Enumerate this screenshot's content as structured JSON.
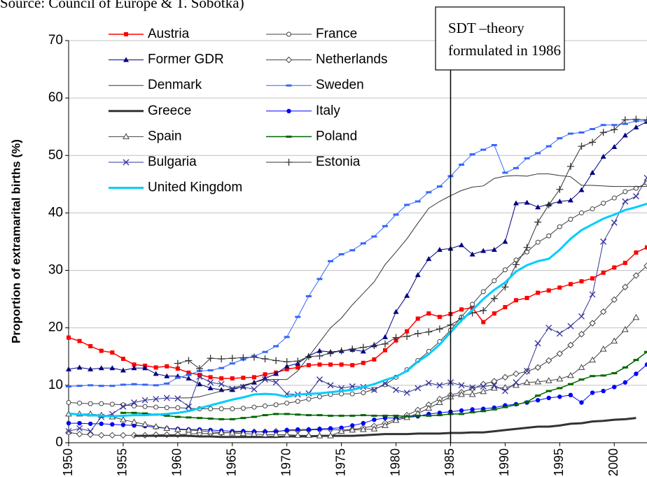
{
  "chart_data": {
    "type": "line",
    "subtitle": "Source: Council of Europe & T. Sobotka)",
    "y_label": "Proportion of extramarital births (%)",
    "annotation": [
      "SDT –theory",
      "formulated in 1986"
    ],
    "annotation_x": 1985,
    "x": [
      1950,
      1951,
      1952,
      1953,
      1954,
      1955,
      1956,
      1957,
      1958,
      1959,
      1960,
      1961,
      1962,
      1963,
      1964,
      1965,
      1966,
      1967,
      1968,
      1969,
      1970,
      1971,
      1972,
      1973,
      1974,
      1975,
      1976,
      1977,
      1978,
      1979,
      1980,
      1981,
      1982,
      1983,
      1984,
      1985,
      1986,
      1987,
      1988,
      1989,
      1990,
      1991,
      1992,
      1993,
      1994,
      1995,
      1996,
      1997,
      1998,
      1999,
      2000,
      2001,
      2002,
      2003
    ],
    "xlim": [
      1950,
      2003
    ],
    "xticks": [
      1950,
      1955,
      1960,
      1965,
      1970,
      1975,
      1980,
      1985,
      1990,
      1995,
      2000
    ],
    "ylim": [
      0,
      70
    ],
    "yticks": [
      0,
      10,
      20,
      30,
      40,
      50,
      60,
      70
    ],
    "grid": true,
    "series": [
      {
        "name": "Austria",
        "color": "#ff0000",
        "marker": "square",
        "width": 1.5,
        "values": [
          18.3,
          17.7,
          16.8,
          16.0,
          15.7,
          14.6,
          13.6,
          13.4,
          13.1,
          13.3,
          12.9,
          12.2,
          11.8,
          11.4,
          11.2,
          11.2,
          11.3,
          11.4,
          11.9,
          12.2,
          12.8,
          13.1,
          13.5,
          13.6,
          13.6,
          13.6,
          13.5,
          13.9,
          14.5,
          16.1,
          17.8,
          19.4,
          21.6,
          22.5,
          21.9,
          22.4,
          23.2,
          23.5,
          21.0,
          22.5,
          23.6,
          24.8,
          25.2,
          26.1,
          26.5,
          27.0,
          27.6,
          28.1,
          28.6,
          29.6,
          30.5,
          31.3,
          33.1,
          34.0
        ]
      },
      {
        "name": "France",
        "color": "#404040",
        "marker": "circle-open",
        "width": 1,
        "values": [
          7.0,
          6.9,
          6.8,
          6.8,
          6.7,
          6.6,
          6.4,
          6.3,
          6.2,
          6.1,
          6.1,
          6.0,
          5.9,
          5.9,
          5.9,
          5.9,
          6.0,
          6.2,
          6.4,
          6.6,
          6.9,
          7.2,
          7.6,
          8.0,
          8.4,
          8.5,
          8.5,
          8.7,
          9.3,
          10.1,
          11.4,
          12.7,
          14.3,
          15.9,
          17.6,
          19.6,
          21.9,
          24.1,
          26.3,
          28.2,
          30.1,
          31.8,
          33.2,
          34.9,
          36.0,
          37.6,
          38.9,
          40.0,
          40.7,
          41.7,
          42.6,
          43.7,
          44.3,
          45.2
        ]
      },
      {
        "name": "Former GDR",
        "color": "#000080",
        "marker": "triangle",
        "width": 1,
        "values": [
          12.8,
          13.1,
          12.8,
          13.0,
          13.0,
          12.6,
          13.0,
          13.0,
          12.0,
          11.6,
          11.6,
          11.2,
          10.2,
          9.5,
          9.2,
          9.2,
          9.8,
          10.5,
          11.2,
          12.0,
          13.3,
          13.8,
          15.1,
          16.0,
          15.8,
          16.0,
          16.2,
          15.9,
          17.0,
          18.4,
          22.8,
          25.6,
          29.2,
          32.0,
          33.6,
          33.8,
          34.4,
          32.8,
          33.4,
          33.6,
          35.0,
          41.7,
          41.8,
          41.0,
          41.5,
          42.0,
          42.2,
          44.0,
          47.0,
          49.8,
          51.5,
          53.5,
          54.9,
          55.9
        ]
      },
      {
        "name": "Netherlands",
        "color": "#404040",
        "marker": "diamond-open",
        "width": 1,
        "values": [
          1.8,
          1.5,
          1.4,
          1.3,
          1.3,
          1.3,
          1.3,
          1.3,
          1.4,
          1.4,
          1.4,
          1.5,
          1.6,
          1.6,
          1.7,
          1.8,
          1.9,
          1.9,
          1.9,
          2.0,
          2.1,
          2.1,
          2.2,
          2.3,
          2.3,
          2.2,
          2.3,
          2.6,
          2.9,
          3.4,
          4.1,
          4.8,
          5.7,
          6.6,
          7.6,
          8.3,
          8.8,
          9.4,
          10.2,
          10.7,
          11.4,
          12.0,
          12.4,
          13.1,
          14.3,
          15.5,
          17.0,
          18.9,
          20.8,
          22.8,
          24.9,
          27.1,
          29.1,
          30.8
        ]
      },
      {
        "name": "Denmark",
        "color": "#333333",
        "marker": "none",
        "width": 1,
        "values": [
          null,
          null,
          null,
          null,
          null,
          null,
          null,
          null,
          null,
          null,
          7.8,
          7.8,
          8.0,
          8.5,
          9.0,
          9.5,
          10.0,
          10.5,
          11.0,
          11.0,
          11.0,
          12.5,
          15.0,
          17.5,
          20.0,
          21.7,
          24.0,
          26.0,
          28.0,
          31.0,
          33.2,
          35.5,
          38.2,
          40.8,
          42.0,
          43.0,
          43.9,
          44.5,
          44.7,
          46.0,
          46.4,
          46.5,
          46.4,
          46.8,
          46.8,
          46.5,
          46.3,
          44.8,
          44.8,
          44.7,
          44.6,
          44.6,
          44.6,
          44.6
        ]
      },
      {
        "name": "Sweden",
        "color": "#3366ff",
        "marker": "dash",
        "width": 1,
        "values": [
          9.8,
          9.9,
          10.0,
          9.9,
          9.9,
          10.1,
          10.2,
          10.1,
          10.0,
          10.3,
          11.3,
          11.8,
          12.5,
          12.6,
          13.0,
          13.8,
          14.5,
          15.1,
          15.8,
          16.8,
          18.4,
          21.9,
          25.5,
          28.5,
          31.6,
          32.8,
          33.5,
          34.7,
          35.9,
          37.7,
          39.7,
          41.4,
          42.0,
          43.6,
          44.6,
          46.4,
          48.4,
          50.2,
          51.0,
          51.8,
          47.0,
          47.8,
          49.5,
          50.4,
          51.6,
          53.0,
          53.8,
          54.0,
          54.6,
          55.3,
          55.3,
          55.5,
          56.0,
          56.0
        ]
      },
      {
        "name": "Greece",
        "color": "#333333",
        "marker": "none",
        "width": 3,
        "values": [
          null,
          null,
          null,
          null,
          null,
          null,
          1.2,
          1.2,
          1.2,
          1.2,
          1.2,
          1.2,
          1.1,
          1.1,
          1.0,
          1.0,
          1.0,
          1.0,
          1.0,
          1.0,
          1.1,
          1.1,
          1.1,
          1.2,
          1.2,
          1.2,
          1.2,
          1.3,
          1.4,
          1.5,
          1.5,
          1.5,
          1.6,
          1.6,
          1.6,
          1.7,
          1.7,
          1.8,
          1.8,
          2.0,
          2.2,
          2.4,
          2.6,
          2.8,
          2.8,
          3.0,
          3.3,
          3.4,
          3.7,
          3.8,
          4.0,
          4.1,
          4.3,
          null
        ]
      },
      {
        "name": "Italy",
        "color": "#0000ff",
        "marker": "circle",
        "width": 1,
        "values": [
          3.4,
          3.4,
          3.3,
          3.3,
          3.2,
          3.1,
          3.0,
          2.9,
          2.7,
          2.5,
          2.4,
          2.3,
          2.3,
          2.2,
          2.1,
          2.0,
          2.0,
          1.9,
          1.9,
          1.9,
          2.2,
          2.3,
          2.3,
          2.4,
          2.5,
          2.6,
          3.0,
          3.4,
          4.0,
          4.3,
          4.3,
          4.4,
          4.6,
          5.0,
          5.2,
          5.4,
          5.6,
          5.8,
          5.9,
          6.1,
          6.5,
          6.7,
          7.0,
          7.4,
          7.8,
          8.0,
          8.3,
          7.0,
          8.7,
          9.0,
          9.7,
          10.5,
          12.0,
          13.6
        ]
      },
      {
        "name": "Spain",
        "color": "#404040",
        "marker": "triangle-open",
        "width": 1,
        "values": [
          5.0,
          5.0,
          5.0,
          4.8,
          4.5,
          4.0,
          3.6,
          3.2,
          2.8,
          2.5,
          2.3,
          2.2,
          2.1,
          1.9,
          1.8,
          1.7,
          1.6,
          1.5,
          1.4,
          1.4,
          1.4,
          1.3,
          1.3,
          1.2,
          1.2,
          2.0,
          2.2,
          2.3,
          2.4,
          3.0,
          3.9,
          4.4,
          5.1,
          6.0,
          7.0,
          8.0,
          8.4,
          8.4,
          8.9,
          9.5,
          9.6,
          10.0,
          10.5,
          10.6,
          10.8,
          11.1,
          11.7,
          13.1,
          14.4,
          16.3,
          17.7,
          19.7,
          21.8,
          null
        ]
      },
      {
        "name": "Poland",
        "color": "#006600",
        "marker": "dash",
        "width": 1.5,
        "values": [
          null,
          null,
          null,
          null,
          null,
          5.2,
          5.2,
          5.1,
          4.9,
          4.7,
          4.5,
          4.4,
          4.3,
          4.2,
          4.1,
          4.1,
          4.3,
          4.5,
          4.8,
          5.0,
          5.0,
          4.9,
          4.8,
          4.8,
          4.7,
          4.7,
          4.7,
          4.8,
          4.7,
          4.7,
          4.7,
          4.6,
          4.7,
          4.7,
          4.8,
          5.0,
          5.0,
          5.3,
          5.5,
          5.8,
          6.2,
          6.6,
          7.1,
          8.2,
          9.0,
          9.5,
          10.2,
          11.0,
          11.6,
          11.7,
          12.1,
          13.1,
          14.4,
          15.8
        ]
      },
      {
        "name": "Bulgaria",
        "color": "#333399",
        "marker": "x",
        "width": 1,
        "values": [
          2.0,
          2.5,
          2.0,
          4.5,
          5.0,
          6.3,
          7.0,
          7.4,
          7.6,
          7.8,
          7.7,
          6.3,
          11.5,
          10.5,
          10.2,
          9.4,
          9.7,
          9.3,
          11.0,
          10.5,
          8.5,
          8.4,
          8.6,
          11.0,
          10.0,
          9.5,
          9.8,
          9.7,
          9.2,
          10.3,
          9.2,
          8.7,
          9.5,
          10.4,
          10.0,
          10.5,
          10.0,
          9.6,
          9.8,
          10.0,
          9.0,
          10.5,
          12.5,
          17.3,
          20.0,
          19.0,
          20.3,
          22.0,
          25.8,
          35.0,
          38.3,
          42.0,
          42.9,
          46.1
        ]
      },
      {
        "name": "Estonia",
        "color": "#333333",
        "marker": "plus",
        "width": 1,
        "values": [
          null,
          null,
          null,
          null,
          null,
          null,
          null,
          null,
          null,
          null,
          13.8,
          14.3,
          12.9,
          14.7,
          14.6,
          14.7,
          14.8,
          14.9,
          14.6,
          14.3,
          14.1,
          14.2,
          15.0,
          15.1,
          15.6,
          16.0,
          16.3,
          16.6,
          16.9,
          17.2,
          18.3,
          18.5,
          19.0,
          19.3,
          19.8,
          20.5,
          21.6,
          22.6,
          23.0,
          25.1,
          27.1,
          31.0,
          34.0,
          38.4,
          41.4,
          44.1,
          48.1,
          51.6,
          52.3,
          54.0,
          54.5,
          56.2,
          56.3,
          56.2
        ]
      },
      {
        "name": "United Kingdom",
        "color": "#00ccff",
        "marker": "none",
        "width": 3,
        "values": [
          5.1,
          4.9,
          4.8,
          4.7,
          4.6,
          4.7,
          4.8,
          4.8,
          4.9,
          5.0,
          5.2,
          5.5,
          6.0,
          6.5,
          7.0,
          7.5,
          7.9,
          8.4,
          8.5,
          8.4,
          8.0,
          8.4,
          8.5,
          8.6,
          8.8,
          9.0,
          9.2,
          9.7,
          10.2,
          10.9,
          11.5,
          12.5,
          14.1,
          15.4,
          17.1,
          19.2,
          21.3,
          23.1,
          25.0,
          26.6,
          27.9,
          29.8,
          30.9,
          31.6,
          32.0,
          33.6,
          35.5,
          37.0,
          38.0,
          39.0,
          39.7,
          40.5,
          41.0,
          41.6
        ]
      }
    ]
  }
}
